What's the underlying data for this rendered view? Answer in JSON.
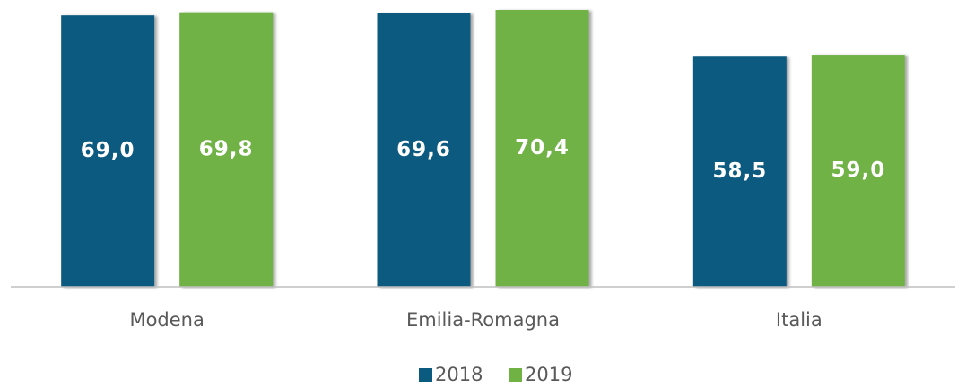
{
  "chart_data": {
    "type": "bar",
    "categories": [
      "Modena",
      "Emilia-Romagna",
      "Italia"
    ],
    "series": [
      {
        "name": "2018",
        "color": "#0b5a80",
        "values": [
          69.0,
          69.6,
          58.5
        ],
        "value_labels": [
          "69,0",
          "69,6",
          "58,5"
        ]
      },
      {
        "name": "2019",
        "color": "#70b244",
        "values": [
          69.8,
          70.4,
          59.0
        ],
        "value_labels": [
          "69,8",
          "70,4",
          "59,0"
        ]
      }
    ],
    "ylim": [
      0,
      72
    ],
    "legend": "bottom"
  }
}
